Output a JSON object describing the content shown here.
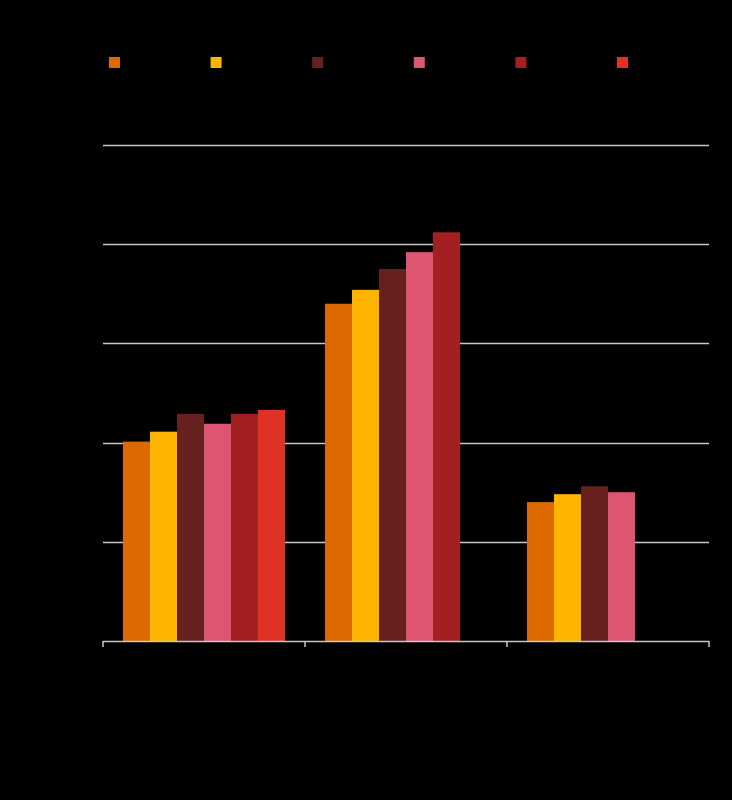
{
  "chart_data": {
    "type": "bar",
    "categories": [
      "",
      "",
      ""
    ],
    "series": [
      {
        "color": "#DC6A00",
        "values": [
          201,
          340,
          140
        ]
      },
      {
        "color": "#FFB400",
        "values": [
          211,
          354,
          148
        ]
      },
      {
        "color": "#66211F",
        "values": [
          229,
          375,
          156
        ]
      },
      {
        "color": "#DD5570",
        "values": [
          219,
          392,
          150
        ]
      },
      {
        "color": "#A21F22",
        "values": [
          229,
          412,
          null
        ]
      },
      {
        "color": "#E03224",
        "values": [
          233,
          null,
          null
        ]
      }
    ],
    "ylim": [
      0,
      500
    ],
    "grid": true,
    "legend_position": "top"
  }
}
